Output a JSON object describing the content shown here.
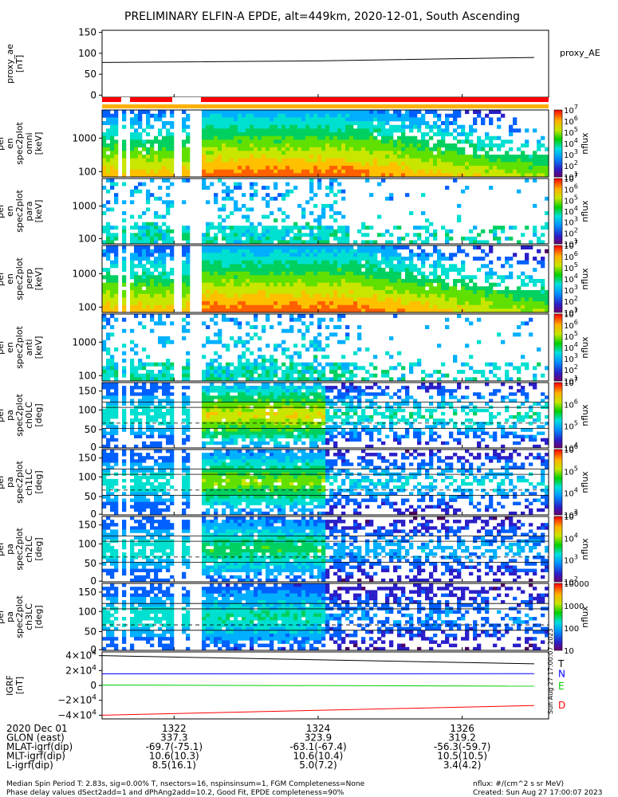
{
  "title": "PRELIMINARY ELFIN-A EPDE, alt=449km, 2020-12-01, South Ascending",
  "chart_data": [
    {
      "type": "line",
      "ylabel": "proxy_ae\n[nT]",
      "ylim": [
        -5,
        155
      ],
      "yticks": [
        "150",
        "100",
        "50",
        "0"
      ],
      "series": [
        {
          "name": "proxy_AE",
          "color": "#000000",
          "x": [
            1321.0,
            1324.0,
            1327.0
          ],
          "values": [
            78,
            82,
            90
          ]
        }
      ]
    },
    {
      "type": "heatmap",
      "ylabel": "ela\npef\nen\nspec2plot\nomni\n[keV]",
      "yticks": [
        "1000",
        "100"
      ],
      "colorbar": {
        "label": "nflux",
        "ticks": [
          "10^7",
          "10^6",
          "10^5",
          "10^4",
          "10^3",
          "10^2",
          "10^1"
        ]
      }
    },
    {
      "type": "heatmap",
      "ylabel": "ela\npef\nen\nspec2plot\npara\n[keV]",
      "yticks": [
        "1000",
        "100"
      ],
      "colorbar": {
        "label": "nflux",
        "ticks": [
          "10^7",
          "10^6",
          "10^5",
          "10^4",
          "10^3",
          "10^2",
          "10^1"
        ]
      }
    },
    {
      "type": "heatmap",
      "ylabel": "ela\npef\nen\nspec2plot\nperp\n[keV]",
      "yticks": [
        "1000",
        "100"
      ],
      "colorbar": {
        "label": "nflux",
        "ticks": [
          "10^7",
          "10^6",
          "10^5",
          "10^4",
          "10^3",
          "10^2",
          "10^1"
        ]
      }
    },
    {
      "type": "heatmap",
      "ylabel": "ela\npef\nen\nspec2plot\nanti\n[keV]",
      "yticks": [
        "1000",
        "100"
      ],
      "colorbar": {
        "label": "nflux",
        "ticks": [
          "10^7",
          "10^6",
          "10^5",
          "10^4",
          "10^3",
          "10^2",
          "10^1"
        ]
      }
    },
    {
      "type": "heatmap",
      "ylabel": "ela\npef\npa\nspec2plot\nch0LC\n[deg]",
      "yticks": [
        "150",
        "100",
        "50",
        "0"
      ],
      "colorbar": {
        "label": "nflux",
        "ticks": [
          "10^7",
          "10^6",
          "10^5",
          "10^4"
        ]
      }
    },
    {
      "type": "heatmap",
      "ylabel": "ela\npef\npa\nspec2plot\nch1LC\n[deg]",
      "yticks": [
        "150",
        "100",
        "50",
        "0"
      ],
      "colorbar": {
        "label": "nflux",
        "ticks": [
          "10^6",
          "10^5",
          "10^4",
          "10^3"
        ]
      }
    },
    {
      "type": "heatmap",
      "ylabel": "ela\npef\npa\nspec2plot\nch2LC\n[deg]",
      "yticks": [
        "150",
        "100",
        "50",
        "0"
      ],
      "colorbar": {
        "label": "nflux",
        "ticks": [
          "10^5",
          "10^4",
          "10^3",
          "10^2"
        ]
      }
    },
    {
      "type": "heatmap",
      "ylabel": "ela\npef\npa\nspec2plot\nch3LC\n[deg]",
      "yticks": [
        "150",
        "100",
        "50",
        "0"
      ],
      "colorbar": {
        "label": "nflux",
        "ticks": [
          "10000",
          "1000",
          "100",
          "10"
        ]
      }
    },
    {
      "type": "line",
      "ylabel": "IGRF\n[nT]",
      "ylim": [
        -45000,
        45000
      ],
      "yticks": [
        "4×10^4",
        "2×10^4",
        "0",
        "−2×10^4",
        "−4×10^4"
      ],
      "series": [
        {
          "name": "T",
          "color": "#000000",
          "x": [
            1321.0,
            1327.0
          ],
          "values": [
            40000,
            29000
          ]
        },
        {
          "name": "N",
          "color": "#0000ff",
          "x": [
            1321.0,
            1327.0
          ],
          "values": [
            15500,
            15800
          ]
        },
        {
          "name": "E",
          "color": "#00cc00",
          "x": [
            1321.0,
            1327.0
          ],
          "values": [
            500,
            -1000
          ]
        },
        {
          "name": "D",
          "color": "#ff0000",
          "x": [
            1321.0,
            1327.0
          ],
          "values": [
            -40000,
            -27000
          ]
        }
      ]
    }
  ],
  "side_stamp": "Sun Aug 27 17:00:07 2023",
  "ephemeris": {
    "rows": [
      {
        "label": "2020 Dec 01",
        "values": [
          "1322",
          "1324",
          "1326"
        ]
      },
      {
        "label": "GLON (east)",
        "values": [
          "337.3",
          "323.9",
          "319.2"
        ]
      },
      {
        "label": "MLAT-igrf(dip)",
        "values": [
          "-69.7(-75.1)",
          "-63.1(-67.4)",
          "-56.3(-59.7)"
        ]
      },
      {
        "label": "MLT-igrf(dip)",
        "values": [
          "10.6(10.3)",
          "10.6(10.4)",
          "10.5(10.5)"
        ]
      },
      {
        "label": "L-igrf(dip)",
        "values": [
          "8.5(16.1)",
          "5.0(7.2)",
          "3.4(4.2)"
        ]
      }
    ],
    "x_values": [
      1322,
      1324,
      1326
    ]
  },
  "footer": {
    "line1": "Median Spin Period T: 2.83s, sig=0.00% T, nsectors=16, nspinsinsum=1, FGM Completeness=None",
    "line2": "Phase delay values dSect2add=1 and dPhAng2add=10.2, Good Fit, EPDE completeness=90%",
    "right1": "nflux: #/(cm^2 s sr MeV)",
    "right2": "Created: Sun Aug 27 17:00:07 2023"
  }
}
